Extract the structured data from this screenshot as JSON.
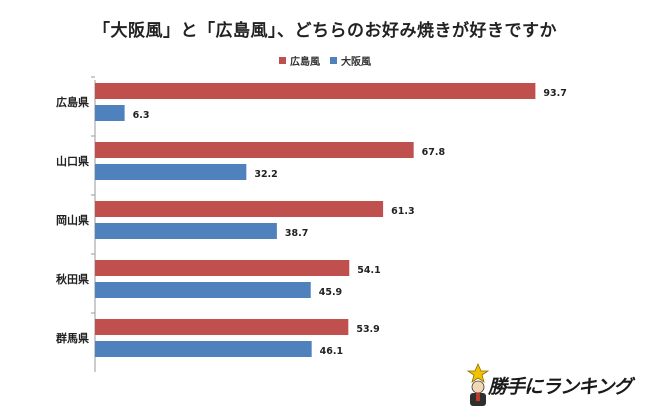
{
  "chart_data": {
    "type": "bar",
    "orientation": "horizontal",
    "title": "「大阪風」と「広島風」、どちらのお好み焼きが好きですか",
    "categories": [
      "広島県",
      "山口県",
      "岡山県",
      "秋田県",
      "群馬県"
    ],
    "series": [
      {
        "name": "広島風",
        "color": "#c0504d",
        "values": [
          93.7,
          67.8,
          61.3,
          54.1,
          53.9
        ]
      },
      {
        "name": "大阪風",
        "color": "#4f81bd",
        "values": [
          6.3,
          32.2,
          38.7,
          45.9,
          46.1
        ]
      }
    ],
    "xlim": [
      0,
      100
    ],
    "grid": false,
    "legend_position": "top"
  },
  "logo": {
    "text": "勝手にランキング"
  }
}
